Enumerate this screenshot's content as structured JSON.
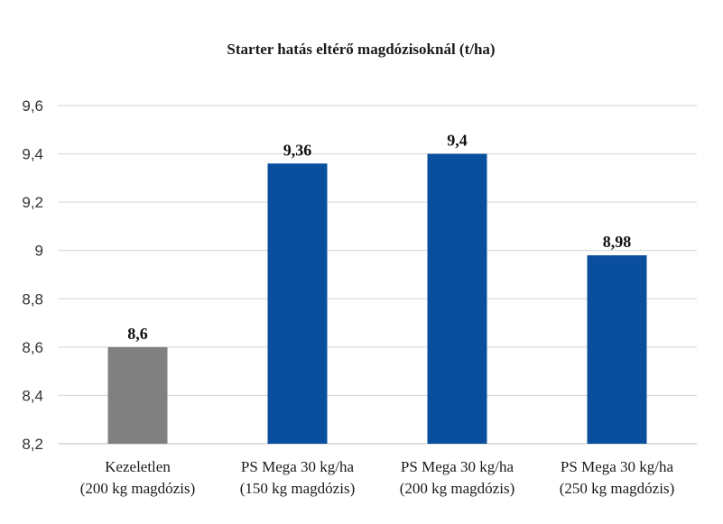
{
  "chart_data": {
    "type": "bar",
    "title": "Starter hatás eltérő magdózisoknál (t/ha)",
    "xlabel": "",
    "ylabel": "",
    "ylim": [
      8.2,
      9.6
    ],
    "yticks": [
      "8,2",
      "8,4",
      "8,6",
      "8,8",
      "9",
      "9,2",
      "9,4",
      "9,6"
    ],
    "grid": true,
    "categories": [
      [
        "Kezeletlen",
        "(200 kg magdózis)"
      ],
      [
        "PS Mega 30 kg/ha",
        "(150 kg magdózis)"
      ],
      [
        "PS Mega 30 kg/ha",
        "(200 kg magdózis)"
      ],
      [
        "PS Mega 30 kg/ha",
        "(250 kg magdózis)"
      ]
    ],
    "values": [
      8.6,
      9.36,
      9.4,
      8.98
    ],
    "value_labels": [
      "8,6",
      "9,36",
      "9,4",
      "8,98"
    ],
    "colors": [
      "#808080",
      "#0a4f9e",
      "#0a4f9e",
      "#0a4f9e"
    ]
  }
}
